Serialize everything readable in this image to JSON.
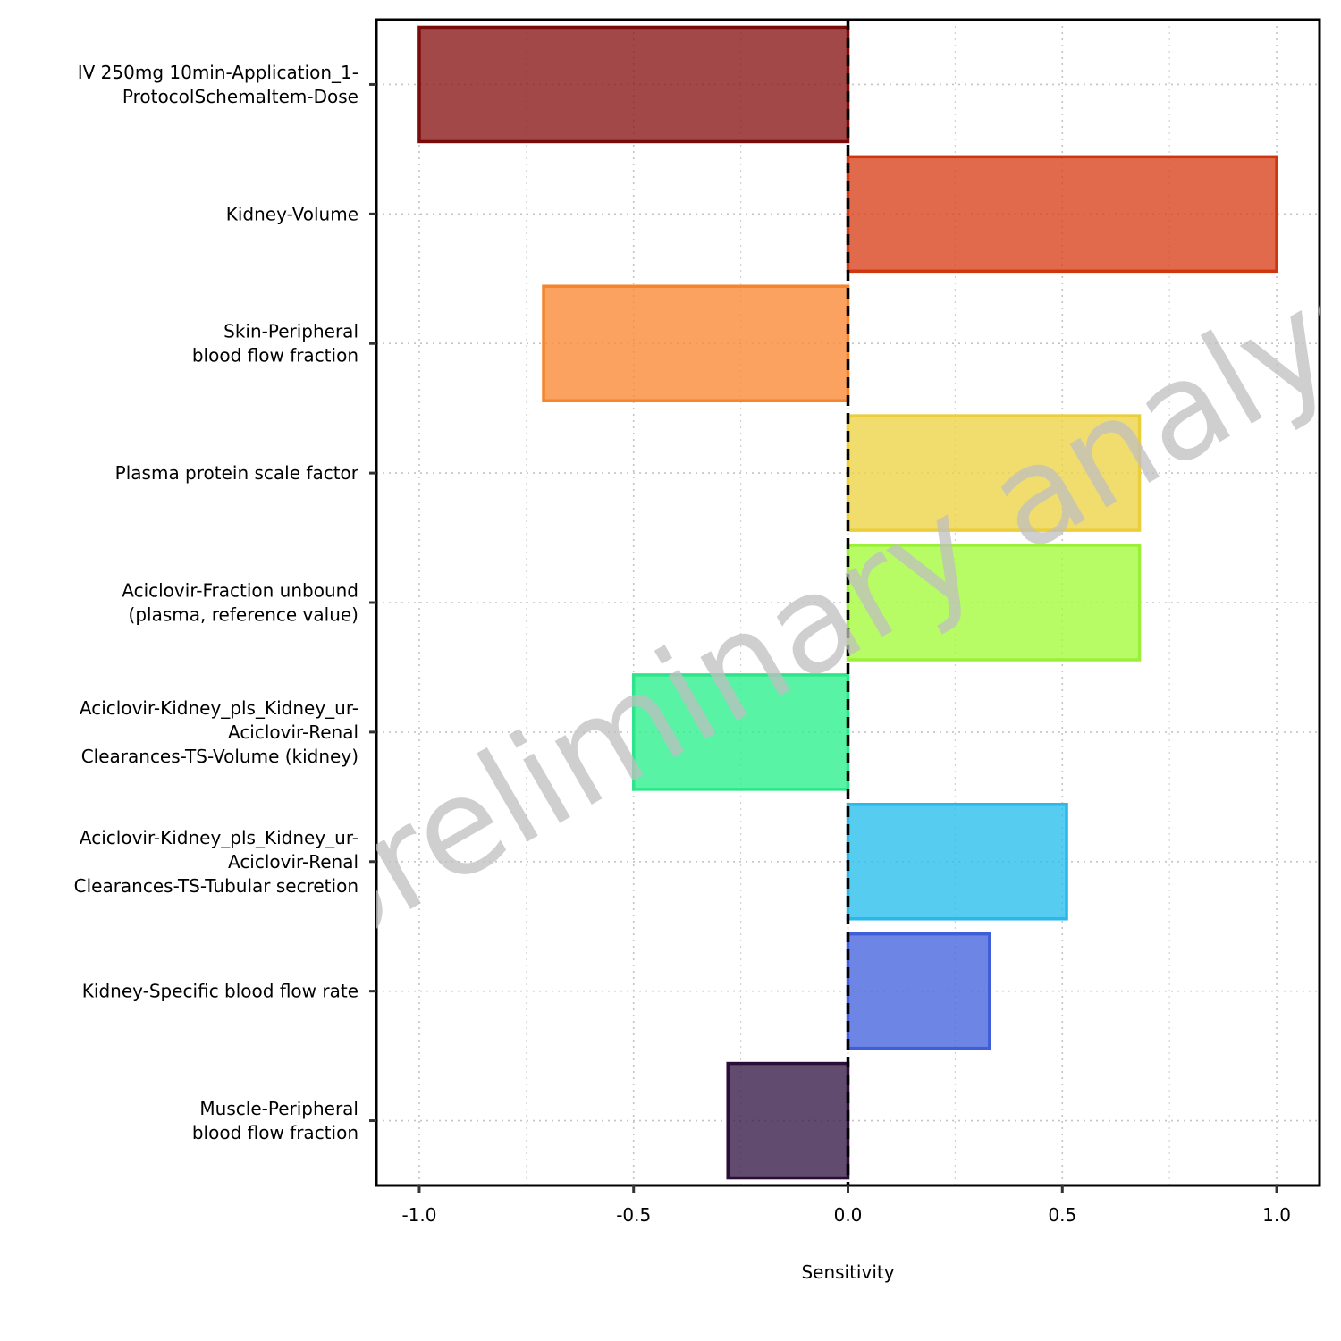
{
  "chart_data": {
    "type": "bar",
    "orientation": "horizontal",
    "xlabel": "Sensitivity",
    "ylabel": "",
    "xlim": [
      -1.1,
      1.1
    ],
    "xticks": [
      "-1.0",
      "-0.5",
      "0.0",
      "0.5",
      "1.0"
    ],
    "grid": "dotted",
    "reference_line": 0,
    "watermark": "preliminary analysis",
    "categories": [
      [
        "IV 250mg 10min-Application_1-",
        "ProtocolSchemaItem-Dose"
      ],
      [
        "Kidney-Volume"
      ],
      [
        "Skin-Peripheral",
        "blood flow fraction"
      ],
      [
        "Plasma protein scale factor"
      ],
      [
        "Aciclovir-Fraction unbound",
        "(plasma, reference value)"
      ],
      [
        "Aciclovir-Kidney_pls_Kidney_ur-",
        "Aciclovir-Renal",
        "Clearances-TS-Volume (kidney)"
      ],
      [
        "Aciclovir-Kidney_pls_Kidney_ur-",
        "Aciclovir-Renal",
        "Clearances-TS-Tubular secretion"
      ],
      [
        "Kidney-Specific blood flow rate"
      ],
      [
        "Muscle-Peripheral",
        "blood flow fraction"
      ]
    ],
    "values": [
      -1.0,
      1.0,
      -0.71,
      0.68,
      0.68,
      -0.5,
      0.51,
      0.33,
      -0.28
    ],
    "fill_colors": [
      "#8b1a1a",
      "#d9441f",
      "#fb8b3a",
      "#eed54a",
      "#a6fb3e",
      "#2ef08e",
      "#2dbfee",
      "#4868e0",
      "#3a1e4a"
    ],
    "stroke_colors": [
      "#7a0b0b",
      "#d0360d",
      "#f5842a",
      "#ebce3a",
      "#9af038",
      "#2ee68a",
      "#2bb7ea",
      "#3f5ed8",
      "#2a0e38"
    ]
  }
}
